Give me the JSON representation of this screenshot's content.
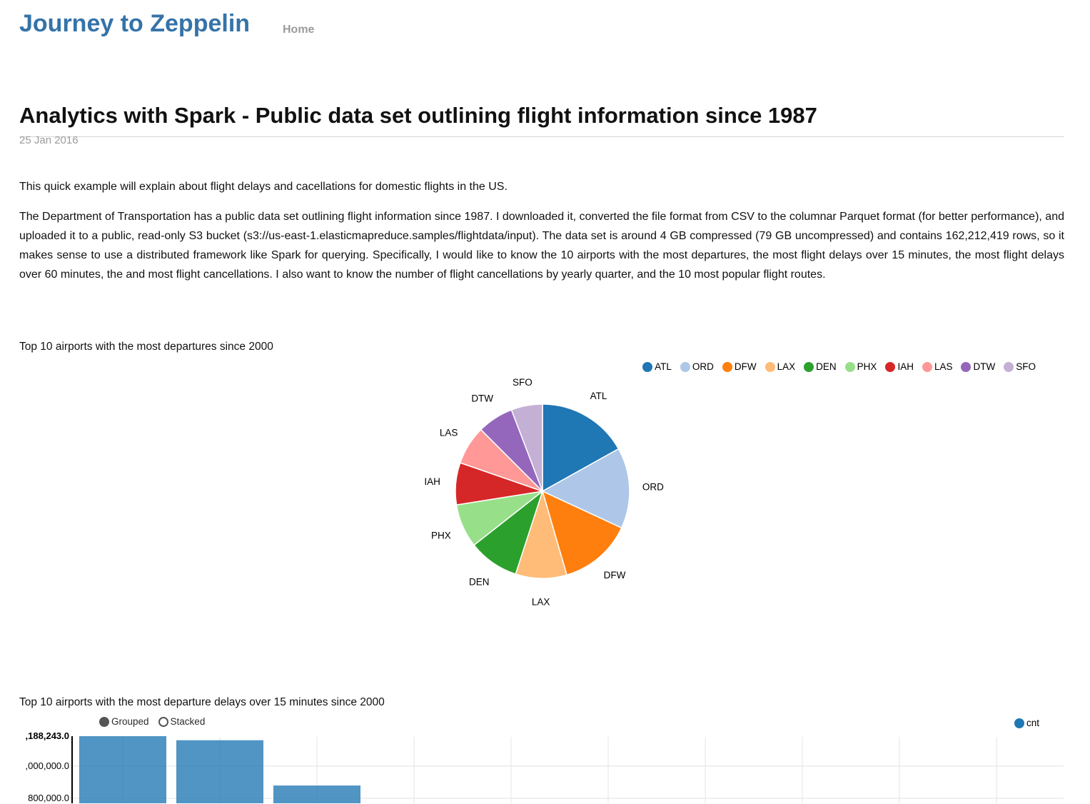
{
  "header": {
    "site_title": "Journey to Zeppelin",
    "nav_home": "Home"
  },
  "article": {
    "title": "Analytics with Spark - Public data set outlining flight information since 1987",
    "date": "25 Jan 2016",
    "paragraph1": "This quick example will explain about flight delays and cacellations for domestic flights in the US.",
    "paragraph2": "The Department of Transportation has a public data set outlining flight information since 1987. I downloaded it, converted the file format from CSV to the columnar Parquet format (for better performance), and uploaded it to a public, read-only S3 bucket (s3://us-east-1.elasticmapreduce.samples/flightdata/input). The data set is around 4 GB compressed (79 GB uncompressed) and contains 162,212,419 rows, so it makes sense to use a distributed framework like Spark for querying. Specifically, I would like to know the 10 airports with the most departures, the most flight delays over 15 minutes, the most flight delays over 60 minutes, the and most flight cancellations. I also want to know the number of flight cancellations by yearly quarter, and the 10 most popular flight routes."
  },
  "chart_data": [
    {
      "type": "pie",
      "title": "Top 10 airports with the most departures since 2000",
      "legend_position": "top-right",
      "series": [
        {
          "label": "ATL",
          "percent": 16.9,
          "color": "#1f77b4"
        },
        {
          "label": "ORD",
          "percent": 15.0,
          "color": "#aec7e8"
        },
        {
          "label": "DFW",
          "percent": 13.6,
          "color": "#ff7f0e"
        },
        {
          "label": "LAX",
          "percent": 9.5,
          "color": "#ffbb78"
        },
        {
          "label": "DEN",
          "percent": 9.4,
          "color": "#2ca02c"
        },
        {
          "label": "PHX",
          "percent": 8.1,
          "color": "#98df8a"
        },
        {
          "label": "IAH",
          "percent": 7.8,
          "color": "#d62728"
        },
        {
          "label": "LAS",
          "percent": 7.2,
          "color": "#ff9896"
        },
        {
          "label": "DTW",
          "percent": 6.7,
          "color": "#9467bd"
        },
        {
          "label": "SFO",
          "percent": 5.8,
          "color": "#c5b0d5"
        }
      ]
    },
    {
      "type": "bar",
      "title": "Top 10 airports with the most departure delays over 15 minutes since 2000",
      "controls": [
        {
          "label": "Grouped",
          "selected": true
        },
        {
          "label": "Stacked",
          "selected": false
        }
      ],
      "legend": [
        {
          "label": "cnt",
          "color": "#1f77b4"
        }
      ],
      "y_tick_labels": [
        ",188,243.0",
        ",000,000.0",
        "800,000.0"
      ],
      "y_tick_values": [
        1188243,
        1000000,
        800000
      ],
      "bar_color": "#1f77b4",
      "bar_opacity": 0.78,
      "grid": true,
      "visible_bar_values": [
        1188243,
        1163000,
        880000
      ]
    }
  ]
}
